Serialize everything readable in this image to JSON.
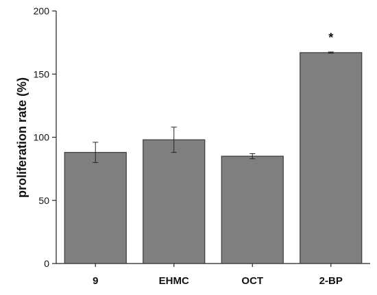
{
  "chart_data": {
    "type": "bar",
    "categories": [
      "9",
      "EHMC",
      "OCT",
      "2-BP"
    ],
    "values": [
      88,
      98,
      85,
      167
    ],
    "errors": [
      8,
      10,
      2,
      0.5
    ],
    "annotations": [
      "",
      "",
      "",
      "*"
    ],
    "title": "",
    "xlabel": "",
    "ylabel": "proliferation rate (%)",
    "ylim": [
      0,
      200
    ],
    "yticks": [
      0,
      50,
      100,
      150,
      200
    ],
    "grid": false,
    "bar_color": "#7f7f7f",
    "edge_color": "#3a3a3a"
  }
}
